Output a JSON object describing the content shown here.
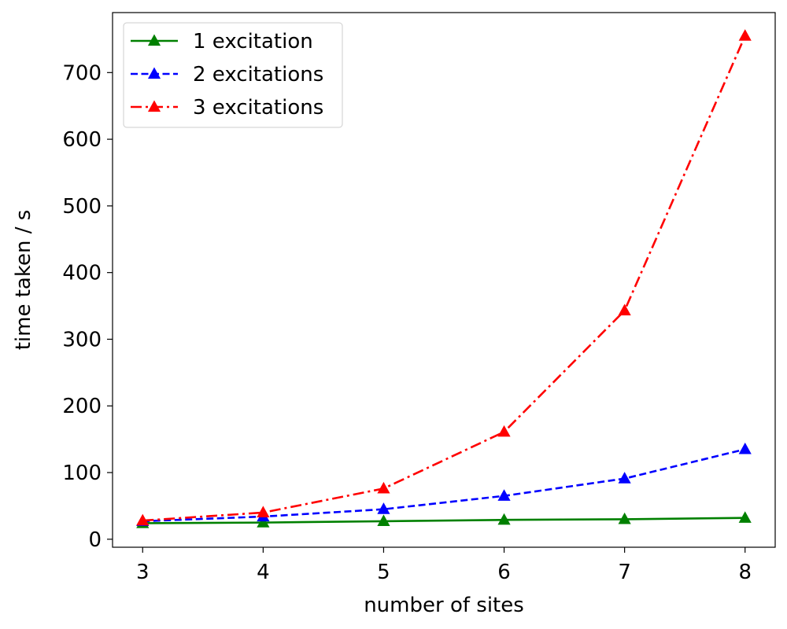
{
  "chart_data": {
    "type": "line",
    "title": "",
    "xlabel": "number of sites",
    "ylabel": "time taken / s",
    "x": [
      3,
      4,
      5,
      6,
      7,
      8
    ],
    "xticks": [
      "3",
      "4",
      "5",
      "6",
      "7",
      "8"
    ],
    "yticks": [
      "0",
      "100",
      "200",
      "300",
      "400",
      "500",
      "600",
      "700"
    ],
    "xlim": [
      2.75,
      8.25
    ],
    "ylim": [
      -12,
      790
    ],
    "grid": false,
    "legend_position": "upper-left",
    "series": [
      {
        "name": "1 excitation",
        "color": "#008000",
        "linestyle": "solid",
        "marker": "triangle",
        "values": [
          24,
          25,
          27,
          29,
          30,
          32
        ]
      },
      {
        "name": "2 excitations",
        "color": "#0000ff",
        "linestyle": "dashed",
        "marker": "triangle",
        "values": [
          27,
          34,
          45,
          65,
          91,
          135
        ]
      },
      {
        "name": "3 excitations",
        "color": "#ff0000",
        "linestyle": "dashdot",
        "marker": "triangle",
        "values": [
          28,
          40,
          76,
          161,
          343,
          755
        ]
      }
    ]
  }
}
